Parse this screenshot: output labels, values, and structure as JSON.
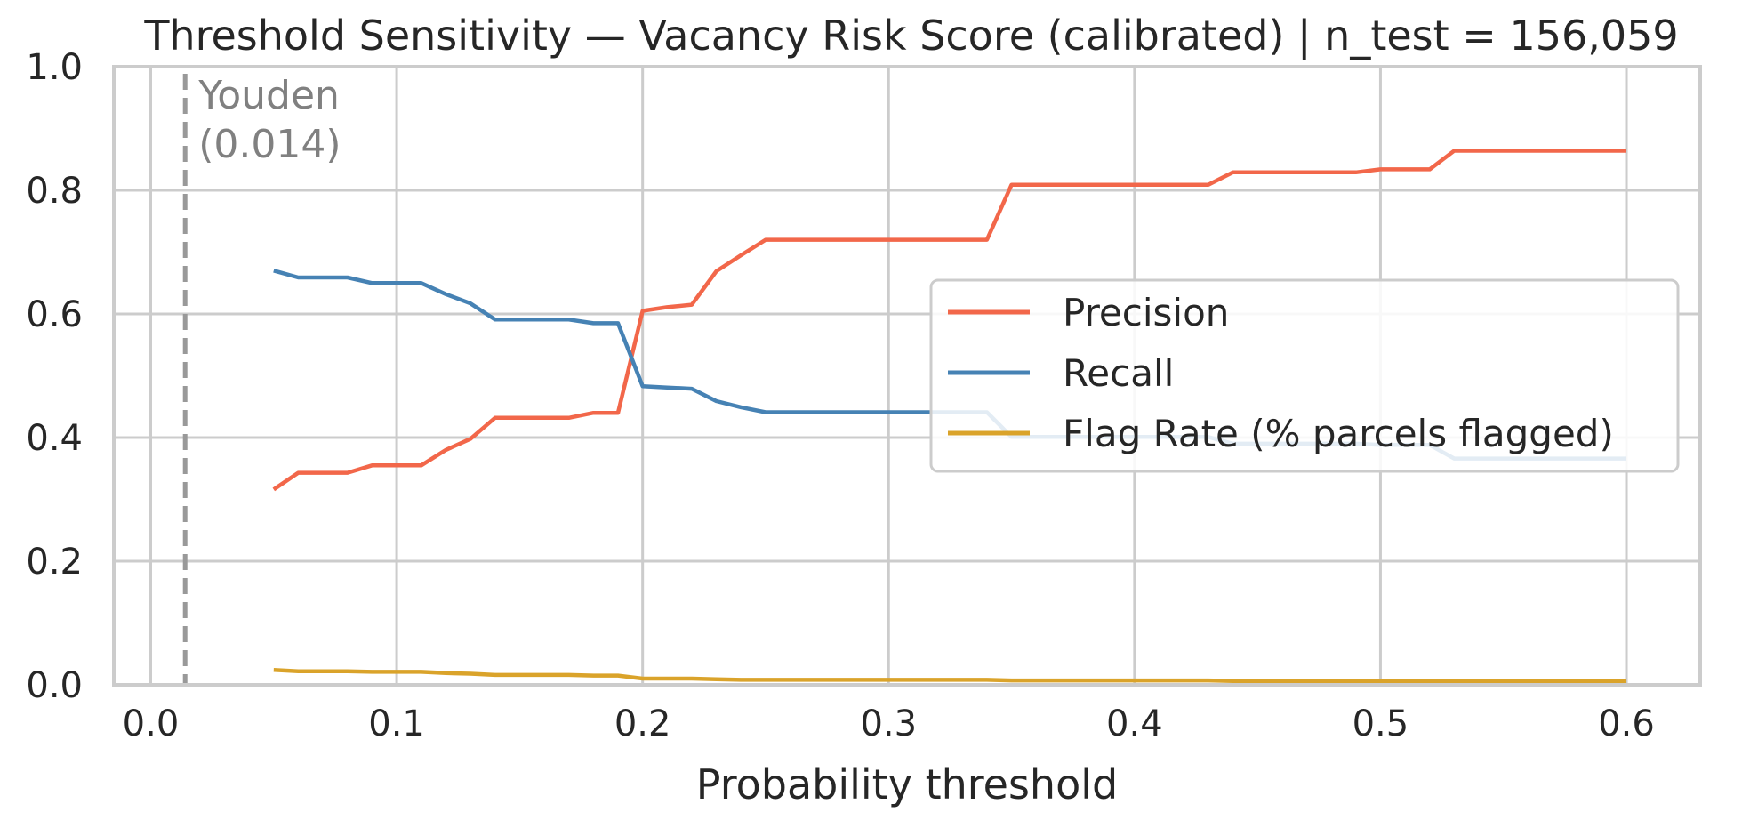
{
  "chart_data": {
    "type": "line",
    "title": "Threshold Sensitivity — Vacancy Risk Score (calibrated) | n_test = 156,059",
    "xlabel": "Probability threshold",
    "ylabel": "",
    "xlim": [
      -0.015,
      0.63
    ],
    "ylim": [
      0,
      1.0
    ],
    "xticks": [
      "0.0",
      "0.1",
      "0.2",
      "0.3",
      "0.4",
      "0.5",
      "0.6"
    ],
    "yticks": [
      "0.0",
      "0.2",
      "0.4",
      "0.6",
      "0.8",
      "1.0"
    ],
    "grid": true,
    "legend_position": "center-right",
    "annotation": {
      "line1": "Youden",
      "line2": "(0.014)",
      "x": 0.014
    },
    "x": [
      0.05,
      0.06,
      0.07,
      0.08,
      0.09,
      0.1,
      0.11,
      0.12,
      0.13,
      0.14,
      0.15,
      0.16,
      0.17,
      0.18,
      0.19,
      0.2,
      0.21,
      0.22,
      0.23,
      0.24,
      0.25,
      0.26,
      0.27,
      0.28,
      0.29,
      0.3,
      0.31,
      0.32,
      0.33,
      0.34,
      0.35,
      0.36,
      0.37,
      0.38,
      0.39,
      0.4,
      0.41,
      0.42,
      0.43,
      0.44,
      0.45,
      0.46,
      0.47,
      0.48,
      0.49,
      0.5,
      0.51,
      0.52,
      0.53,
      0.54,
      0.55,
      0.56,
      0.57,
      0.58,
      0.59,
      0.6
    ],
    "series": [
      {
        "name": "Precision",
        "color": "#f2674a",
        "values": [
          0.316,
          0.343,
          0.343,
          0.343,
          0.355,
          0.355,
          0.355,
          0.38,
          0.398,
          0.432,
          0.432,
          0.432,
          0.432,
          0.44,
          0.44,
          0.605,
          0.611,
          0.615,
          0.669,
          0.695,
          0.72,
          0.72,
          0.72,
          0.72,
          0.72,
          0.72,
          0.72,
          0.72,
          0.72,
          0.72,
          0.809,
          0.809,
          0.809,
          0.809,
          0.809,
          0.809,
          0.809,
          0.809,
          0.809,
          0.829,
          0.829,
          0.829,
          0.829,
          0.829,
          0.829,
          0.834,
          0.834,
          0.834,
          0.864,
          0.864,
          0.864,
          0.864,
          0.864,
          0.864,
          0.864,
          0.864
        ]
      },
      {
        "name": "Recall",
        "color": "#4682b4",
        "values": [
          0.67,
          0.659,
          0.659,
          0.659,
          0.65,
          0.65,
          0.65,
          0.632,
          0.617,
          0.591,
          0.591,
          0.591,
          0.591,
          0.585,
          0.585,
          0.483,
          0.481,
          0.479,
          0.459,
          0.449,
          0.441,
          0.441,
          0.441,
          0.441,
          0.441,
          0.441,
          0.441,
          0.441,
          0.441,
          0.441,
          0.401,
          0.401,
          0.401,
          0.401,
          0.401,
          0.401,
          0.401,
          0.401,
          0.401,
          0.39,
          0.39,
          0.39,
          0.39,
          0.39,
          0.39,
          0.388,
          0.388,
          0.388,
          0.366,
          0.366,
          0.366,
          0.366,
          0.366,
          0.366,
          0.366,
          0.366
        ]
      },
      {
        "name": "Flag Rate (% parcels flagged)",
        "color": "#daa32a",
        "values": [
          0.024,
          0.022,
          0.022,
          0.022,
          0.021,
          0.021,
          0.021,
          0.019,
          0.018,
          0.016,
          0.016,
          0.016,
          0.016,
          0.015,
          0.015,
          0.01,
          0.01,
          0.01,
          0.009,
          0.008,
          0.008,
          0.008,
          0.008,
          0.008,
          0.008,
          0.008,
          0.008,
          0.008,
          0.008,
          0.008,
          0.007,
          0.007,
          0.007,
          0.007,
          0.007,
          0.007,
          0.007,
          0.007,
          0.007,
          0.006,
          0.006,
          0.006,
          0.006,
          0.006,
          0.006,
          0.006,
          0.006,
          0.006,
          0.006,
          0.006,
          0.006,
          0.006,
          0.006,
          0.006,
          0.006,
          0.006
        ]
      }
    ]
  }
}
